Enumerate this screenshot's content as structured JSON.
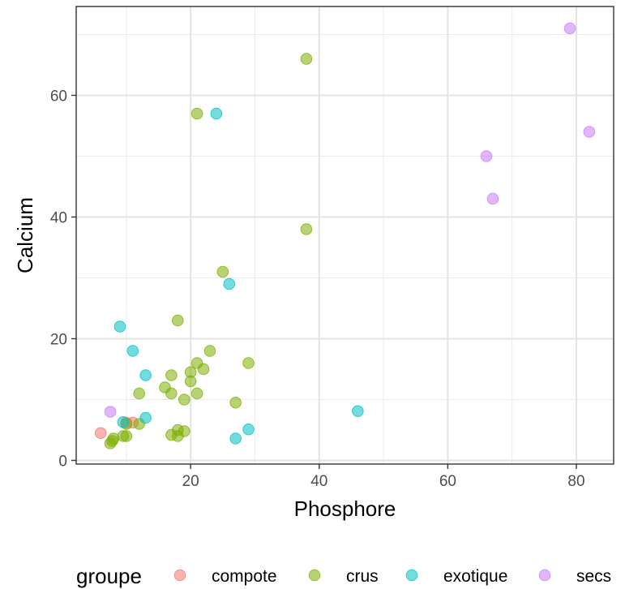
{
  "chart_data": {
    "type": "scatter",
    "xlabel": "Phosphore",
    "ylabel": "Calcium",
    "xlim": [
      2.2,
      85.8
    ],
    "ylim": [
      -0.6,
      74.6
    ],
    "x_ticks": [
      20,
      40,
      60,
      80
    ],
    "y_ticks": [
      0,
      20,
      40,
      60
    ],
    "x_tick_labels": [
      "20",
      "40",
      "60",
      "80"
    ],
    "y_tick_labels": [
      "0",
      "20",
      "40",
      "60"
    ],
    "grid": true,
    "legend": {
      "title": "groupe",
      "position": "bottom"
    },
    "series": [
      {
        "name": "compote",
        "color": "#F8766D",
        "points": [
          [
            6,
            4.5
          ],
          [
            10,
            6.2
          ],
          [
            11,
            6.2
          ]
        ]
      },
      {
        "name": "crus",
        "color": "#7CAE00",
        "points": [
          [
            38,
            66
          ],
          [
            21,
            57
          ],
          [
            38,
            38
          ],
          [
            25,
            31
          ],
          [
            18,
            23
          ],
          [
            23,
            18
          ],
          [
            21,
            16
          ],
          [
            29,
            16
          ],
          [
            22,
            15
          ],
          [
            20,
            14.5
          ],
          [
            17,
            14
          ],
          [
            20,
            13
          ],
          [
            16,
            12
          ],
          [
            12,
            11
          ],
          [
            17,
            11
          ],
          [
            21,
            11
          ],
          [
            19,
            10
          ],
          [
            27,
            9.5
          ],
          [
            10,
            6
          ],
          [
            12,
            6
          ],
          [
            18,
            5
          ],
          [
            19,
            4.8
          ],
          [
            17,
            4.2
          ],
          [
            18,
            4
          ],
          [
            9.5,
            4
          ],
          [
            10,
            4
          ],
          [
            8,
            3.6
          ],
          [
            7.8,
            3.2
          ],
          [
            7.5,
            2.8
          ]
        ]
      },
      {
        "name": "exotique",
        "color": "#00BFC4",
        "points": [
          [
            24,
            57
          ],
          [
            26,
            29
          ],
          [
            9,
            22
          ],
          [
            11,
            18
          ],
          [
            13,
            14
          ],
          [
            13,
            7
          ],
          [
            9.5,
            6.3
          ],
          [
            46,
            8.1
          ],
          [
            29,
            5.1
          ],
          [
            27,
            3.6
          ]
        ]
      },
      {
        "name": "secs",
        "color": "#C77CFF",
        "points": [
          [
            79,
            71
          ],
          [
            82,
            54
          ],
          [
            66,
            50
          ],
          [
            67,
            43
          ],
          [
            7.5,
            8
          ]
        ]
      }
    ]
  }
}
